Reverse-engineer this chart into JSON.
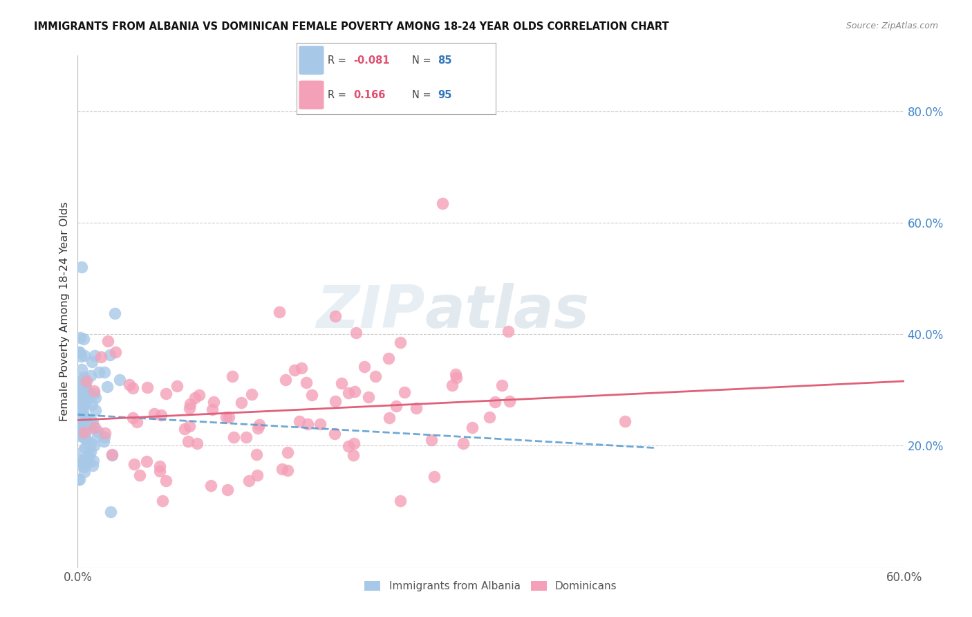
{
  "title": "IMMIGRANTS FROM ALBANIA VS DOMINICAN FEMALE POVERTY AMONG 18-24 YEAR OLDS CORRELATION CHART",
  "source": "Source: ZipAtlas.com",
  "ylabel": "Female Poverty Among 18-24 Year Olds",
  "right_yticks": [
    "80.0%",
    "60.0%",
    "40.0%",
    "20.0%"
  ],
  "right_ytick_vals": [
    0.8,
    0.6,
    0.4,
    0.2
  ],
  "xlim": [
    0.0,
    0.6
  ],
  "ylim": [
    -0.02,
    0.9
  ],
  "legend_albania_r": "-0.081",
  "legend_albania_n": "85",
  "legend_dominican_r": "0.166",
  "legend_dominican_n": "95",
  "color_albania": "#a8c8e8",
  "color_dominican": "#f4a0b8",
  "color_trendline_albania": "#5599cc",
  "color_trendline_dominican": "#e0607a",
  "color_title": "#111111",
  "color_right_axis": "#4488cc",
  "color_source": "#888888",
  "background_color": "#ffffff",
  "grid_color": "#cccccc",
  "trendline_albania_x0": 0.0,
  "trendline_albania_x1": 0.42,
  "trendline_albania_y0": 0.255,
  "trendline_albania_y1": 0.195,
  "trendline_dominican_x0": 0.0,
  "trendline_dominican_x1": 0.6,
  "trendline_dominican_y0": 0.245,
  "trendline_dominican_y1": 0.315
}
